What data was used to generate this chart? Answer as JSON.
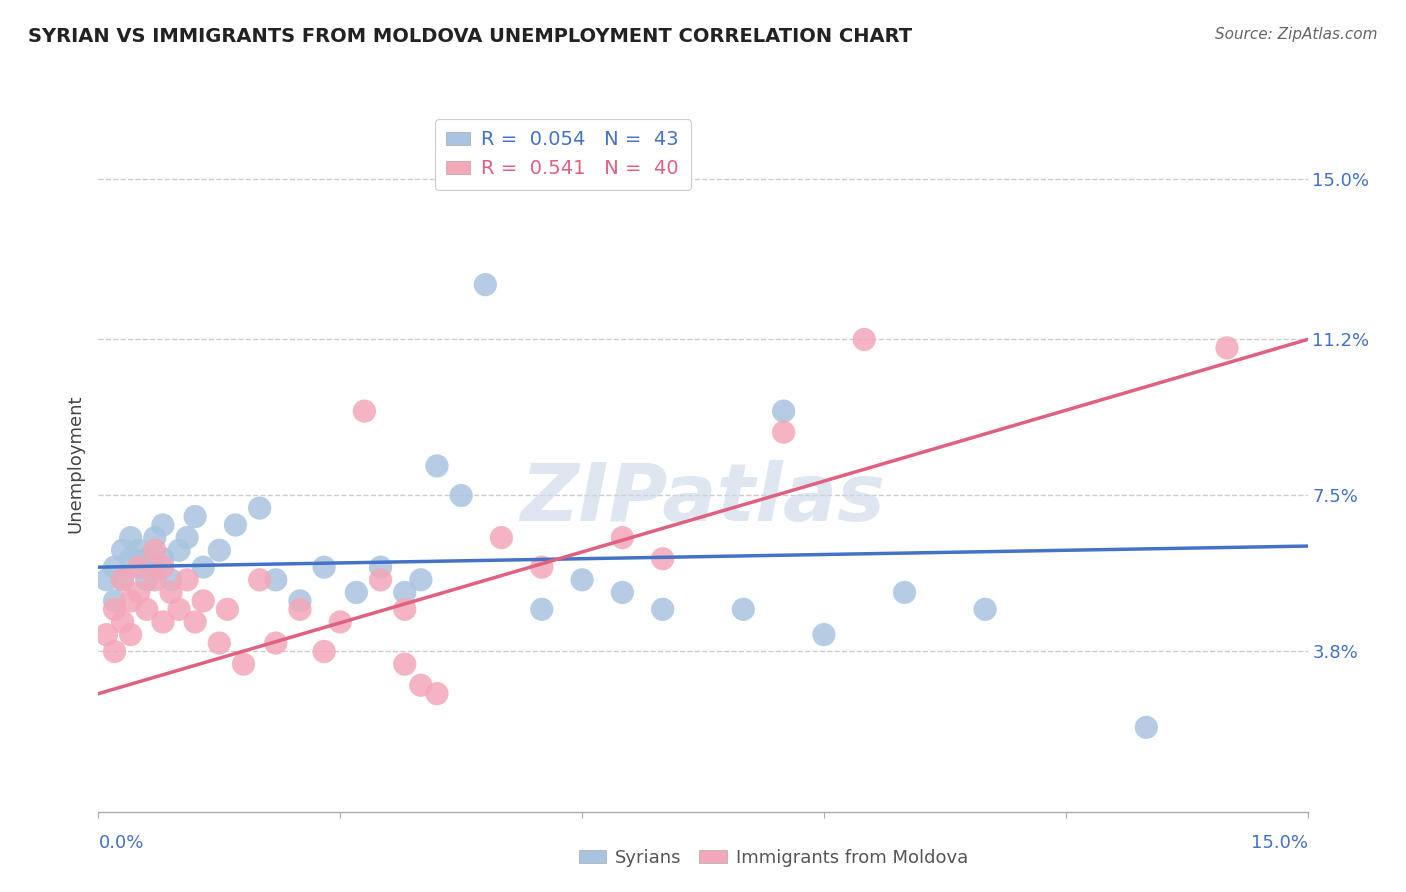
{
  "title": "SYRIAN VS IMMIGRANTS FROM MOLDOVA UNEMPLOYMENT CORRELATION CHART",
  "source": "Source: ZipAtlas.com",
  "ylabel": "Unemployment",
  "xlim": [
    0.0,
    0.15
  ],
  "ylim": [
    0.0,
    0.165
  ],
  "yticks": [
    0.038,
    0.075,
    0.112,
    0.15
  ],
  "ytick_labels": [
    "3.8%",
    "7.5%",
    "11.2%",
    "15.0%"
  ],
  "grid_color": "#cccccc",
  "background_color": "#ffffff",
  "legend1_R": "0.054",
  "legend1_N": "43",
  "legend2_R": "0.541",
  "legend2_N": "40",
  "syrian_color": "#a8c4e0",
  "moldova_color": "#f4a7b9",
  "syrian_line_color": "#4472c4",
  "moldova_line_color": "#e06080",
  "syrians": [
    [
      0.001,
      0.055
    ],
    [
      0.002,
      0.058
    ],
    [
      0.002,
      0.05
    ],
    [
      0.003,
      0.062
    ],
    [
      0.003,
      0.055
    ],
    [
      0.004,
      0.06
    ],
    [
      0.004,
      0.065
    ],
    [
      0.005,
      0.058
    ],
    [
      0.005,
      0.062
    ],
    [
      0.006,
      0.06
    ],
    [
      0.006,
      0.055
    ],
    [
      0.007,
      0.065
    ],
    [
      0.007,
      0.058
    ],
    [
      0.008,
      0.06
    ],
    [
      0.008,
      0.068
    ],
    [
      0.009,
      0.055
    ],
    [
      0.01,
      0.062
    ],
    [
      0.011,
      0.065
    ],
    [
      0.012,
      0.07
    ],
    [
      0.013,
      0.058
    ],
    [
      0.015,
      0.062
    ],
    [
      0.017,
      0.068
    ],
    [
      0.02,
      0.072
    ],
    [
      0.022,
      0.055
    ],
    [
      0.025,
      0.05
    ],
    [
      0.028,
      0.058
    ],
    [
      0.032,
      0.052
    ],
    [
      0.035,
      0.058
    ],
    [
      0.038,
      0.052
    ],
    [
      0.04,
      0.055
    ],
    [
      0.042,
      0.082
    ],
    [
      0.045,
      0.075
    ],
    [
      0.048,
      0.125
    ],
    [
      0.055,
      0.048
    ],
    [
      0.06,
      0.055
    ],
    [
      0.065,
      0.052
    ],
    [
      0.07,
      0.048
    ],
    [
      0.08,
      0.048
    ],
    [
      0.085,
      0.095
    ],
    [
      0.09,
      0.042
    ],
    [
      0.1,
      0.052
    ],
    [
      0.11,
      0.048
    ],
    [
      0.13,
      0.02
    ]
  ],
  "moldova": [
    [
      0.001,
      0.042
    ],
    [
      0.002,
      0.048
    ],
    [
      0.002,
      0.038
    ],
    [
      0.003,
      0.055
    ],
    [
      0.003,
      0.045
    ],
    [
      0.004,
      0.05
    ],
    [
      0.004,
      0.042
    ],
    [
      0.005,
      0.058
    ],
    [
      0.005,
      0.052
    ],
    [
      0.006,
      0.048
    ],
    [
      0.007,
      0.062
    ],
    [
      0.007,
      0.055
    ],
    [
      0.008,
      0.045
    ],
    [
      0.008,
      0.058
    ],
    [
      0.009,
      0.052
    ],
    [
      0.01,
      0.048
    ],
    [
      0.011,
      0.055
    ],
    [
      0.012,
      0.045
    ],
    [
      0.013,
      0.05
    ],
    [
      0.015,
      0.04
    ],
    [
      0.016,
      0.048
    ],
    [
      0.018,
      0.035
    ],
    [
      0.02,
      0.055
    ],
    [
      0.022,
      0.04
    ],
    [
      0.025,
      0.048
    ],
    [
      0.028,
      0.038
    ],
    [
      0.03,
      0.045
    ],
    [
      0.033,
      0.095
    ],
    [
      0.035,
      0.055
    ],
    [
      0.038,
      0.048
    ],
    [
      0.038,
      0.035
    ],
    [
      0.04,
      0.03
    ],
    [
      0.042,
      0.028
    ],
    [
      0.05,
      0.065
    ],
    [
      0.055,
      0.058
    ],
    [
      0.065,
      0.065
    ],
    [
      0.07,
      0.06
    ],
    [
      0.085,
      0.09
    ],
    [
      0.095,
      0.112
    ],
    [
      0.14,
      0.11
    ]
  ],
  "syrian_line": [
    [
      0.0,
      0.058
    ],
    [
      0.15,
      0.063
    ]
  ],
  "moldova_line": [
    [
      0.0,
      0.028
    ],
    [
      0.15,
      0.112
    ]
  ]
}
